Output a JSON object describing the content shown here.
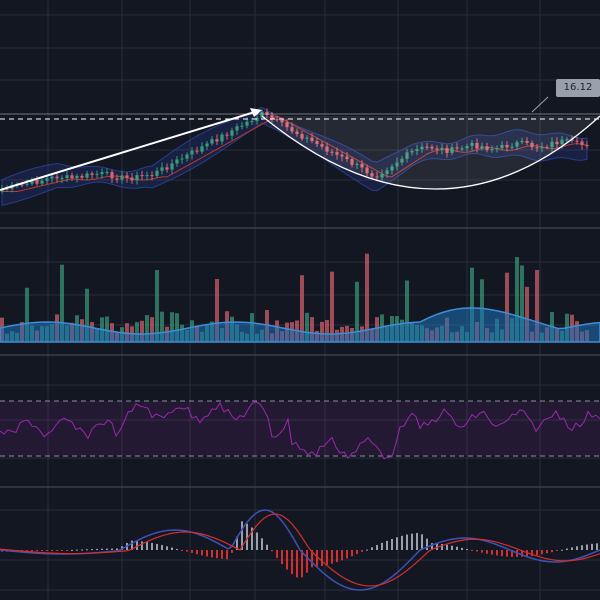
{
  "price_label": "16.12",
  "colors": {
    "background": "#131722",
    "grid": "#2a2e39",
    "bull": "#3a9a7a",
    "bear": "#d9636e",
    "band": "#2f4bb5",
    "ma": "#c0392b",
    "volume": "#1e73b8",
    "rsi": "#9c27b0",
    "macd_line": "#3f51b5",
    "signal_line": "#d32f2f",
    "drawing": "#ffffff"
  },
  "chart_data": [
    {
      "type": "candlestick",
      "panel": "price",
      "annotations": [
        "trend-arrow",
        "dashed-horizontal-line",
        "rounded-bottom-curve",
        "price-label"
      ],
      "overlays": [
        "bollinger-bands",
        "moving-average"
      ],
      "grid": true,
      "y_value_marker": 16.12
    },
    {
      "type": "bar",
      "panel": "volume",
      "overlays": [
        "volume-average-area"
      ],
      "grid": true
    },
    {
      "type": "line",
      "panel": "rsi",
      "overlays": [
        "overbought-oversold-band"
      ],
      "grid": true
    },
    {
      "type": "bar",
      "panel": "macd",
      "overlays": [
        "macd-line",
        "signal-line"
      ],
      "grid": true
    }
  ]
}
